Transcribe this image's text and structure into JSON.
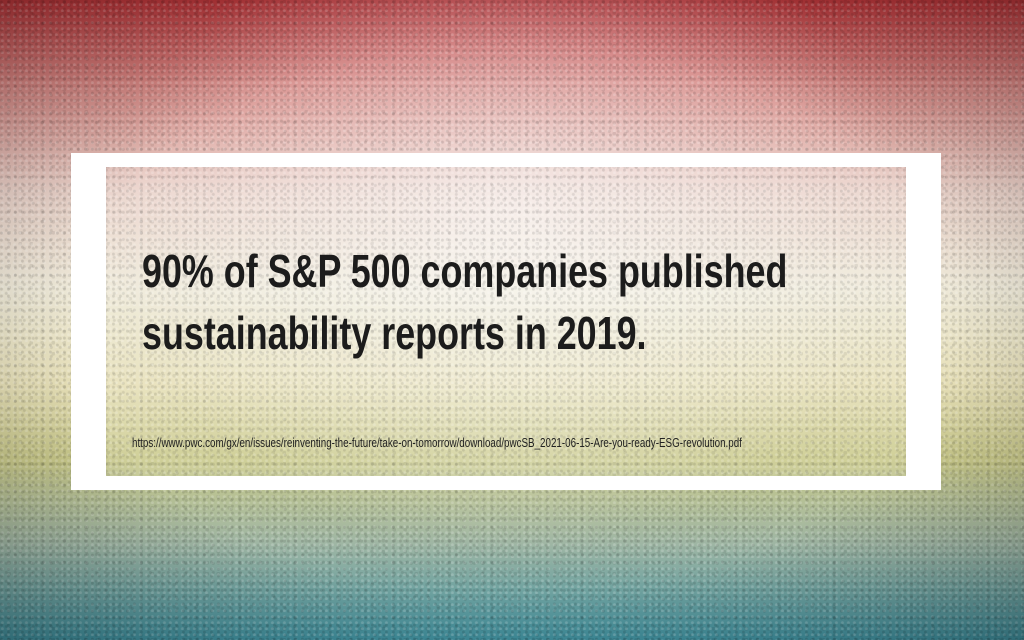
{
  "slide": {
    "headline_line1": "90% of S&P 500 companies published",
    "headline_line2": "sustainability reports in 2019.",
    "source_url": "https://www.pwc.com/gx/en/issues/reinventing-the-future/take-on-tomorrow/download/pwcSB_2021-06-15-Are-you-ready-ESG-revolution.pdf"
  },
  "colors": {
    "frame": "#ffffff",
    "text": "#1c1c1c",
    "background_top": "#b8363a",
    "background_middle": "#eee9d8",
    "background_bottom": "#3f8e9c"
  }
}
